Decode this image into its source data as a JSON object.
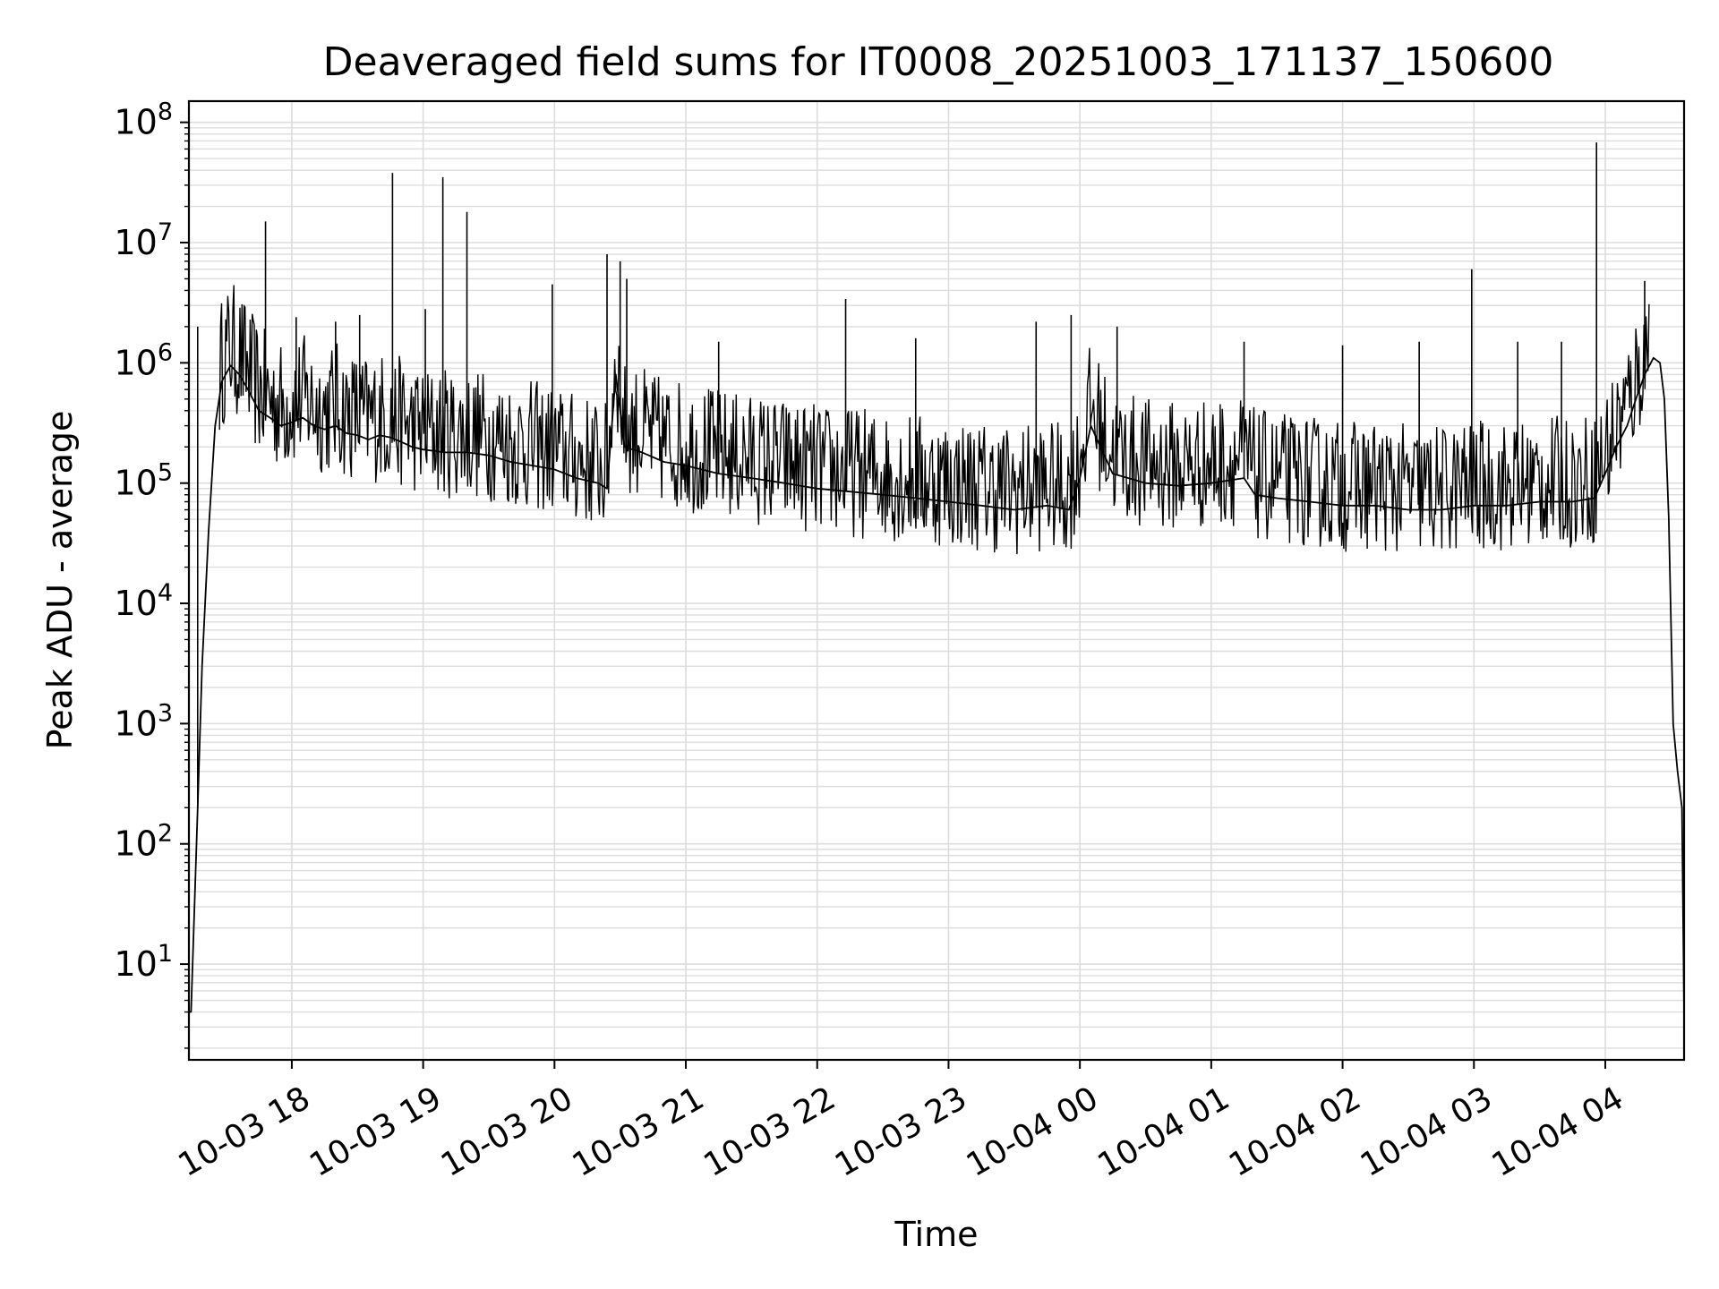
{
  "chart_data": {
    "type": "line",
    "title": "Deaveraged field sums for IT0008_20251003_171137_150600",
    "xlabel": "Time",
    "ylabel": "Peak ADU - average",
    "xscale": "time",
    "yscale": "log",
    "xlim": [
      "10-03 17:13",
      "10-04 04:36"
    ],
    "ylim": [
      1.6,
      150000000
    ],
    "grid": true,
    "grid_minor": true,
    "x_tick_labels": [
      "10-03 18",
      "10-03 19",
      "10-03 20",
      "10-03 21",
      "10-03 22",
      "10-03 23",
      "10-04 00",
      "10-04 01",
      "10-04 02",
      "10-04 03",
      "10-04 04"
    ],
    "y_ticks": [
      {
        "base": "10",
        "exp": "1",
        "value": 10
      },
      {
        "base": "10",
        "exp": "2",
        "value": 100
      },
      {
        "base": "10",
        "exp": "3",
        "value": 1000
      },
      {
        "base": "10",
        "exp": "4",
        "value": 10000
      },
      {
        "base": "10",
        "exp": "5",
        "value": 100000
      },
      {
        "base": "10",
        "exp": "6",
        "value": 1000000
      },
      {
        "base": "10",
        "exp": "7",
        "value": 10000000
      },
      {
        "base": "10",
        "exp": "8",
        "value": 100000000
      }
    ],
    "series": [
      {
        "color": "#000000",
        "x": [
          "10-03 17:13",
          "10-03 17:14",
          "10-03 17:15",
          "10-03 17:17",
          "10-03 17:19",
          "10-03 17:22",
          "10-03 17:25",
          "10-03 17:28",
          "10-03 17:32",
          "10-03 17:36",
          "10-03 17:40",
          "10-03 17:45",
          "10-03 17:50",
          "10-03 17:55",
          "10-03 18:00",
          "10-03 18:05",
          "10-03 18:10",
          "10-03 18:15",
          "10-03 18:20",
          "10-03 18:25",
          "10-03 18:30",
          "10-03 18:35",
          "10-03 18:40",
          "10-03 18:45",
          "10-03 18:50",
          "10-03 18:55",
          "10-03 19:00",
          "10-03 19:10",
          "10-03 19:20",
          "10-03 19:30",
          "10-03 19:40",
          "10-03 19:50",
          "10-03 20:00",
          "10-03 20:10",
          "10-03 20:20",
          "10-03 20:24",
          "10-03 20:28",
          "10-03 20:32",
          "10-03 20:40",
          "10-03 20:50",
          "10-03 21:00",
          "10-03 21:15",
          "10-03 21:30",
          "10-03 21:45",
          "10-03 22:00",
          "10-03 22:15",
          "10-03 22:30",
          "10-03 22:45",
          "10-03 23:00",
          "10-03 23:15",
          "10-03 23:30",
          "10-03 23:45",
          "10-03 23:55",
          "10-04 00:00",
          "10-04 00:05",
          "10-04 00:15",
          "10-04 00:30",
          "10-04 00:45",
          "10-04 01:00",
          "10-04 01:15",
          "10-04 01:20",
          "10-04 01:30",
          "10-04 01:45",
          "10-04 02:00",
          "10-04 02:15",
          "10-04 02:30",
          "10-04 02:45",
          "10-04 03:00",
          "10-04 03:15",
          "10-04 03:30",
          "10-04 03:45",
          "10-04 03:55",
          "10-04 04:00",
          "10-04 04:05",
          "10-04 04:10",
          "10-04 04:14",
          "10-04 04:18",
          "10-04 04:22",
          "10-04 04:25",
          "10-04 04:27",
          "10-04 04:29",
          "10-04 04:31",
          "10-04 04:33",
          "10-04 04:35",
          "10-04 04:36"
        ],
        "y": [
          4,
          4,
          15,
          200,
          3000,
          40000,
          300000,
          700000,
          950000,
          800000,
          600000,
          400000,
          350000,
          300000,
          320000,
          350000,
          300000,
          280000,
          300000,
          260000,
          250000,
          230000,
          250000,
          240000,
          220000,
          200000,
          190000,
          180000,
          180000,
          170000,
          150000,
          140000,
          130000,
          110000,
          100000,
          90000,
          800000,
          200000,
          180000,
          150000,
          140000,
          120000,
          110000,
          100000,
          90000,
          85000,
          80000,
          75000,
          70000,
          65000,
          60000,
          65000,
          60000,
          110000,
          300000,
          120000,
          100000,
          95000,
          100000,
          110000,
          80000,
          75000,
          70000,
          65000,
          65000,
          60000,
          60000,
          65000,
          65000,
          70000,
          70000,
          75000,
          120000,
          200000,
          300000,
          500000,
          800000,
          1100000,
          1000000,
          500000,
          50000,
          1000,
          400,
          200,
          4
        ]
      }
    ],
    "spikes": [
      {
        "x": "10-03 17:17",
        "y": 2000000
      },
      {
        "x": "10-03 17:48",
        "y": 15000000
      },
      {
        "x": "10-03 18:02",
        "y": 2400000
      },
      {
        "x": "10-03 18:20",
        "y": 2200000
      },
      {
        "x": "10-03 18:31",
        "y": 2500000
      },
      {
        "x": "10-03 18:46",
        "y": 38000000
      },
      {
        "x": "10-03 19:01",
        "y": 2800000
      },
      {
        "x": "10-03 19:09",
        "y": 35000000
      },
      {
        "x": "10-03 19:20",
        "y": 18000000
      },
      {
        "x": "10-03 19:59",
        "y": 4500000
      },
      {
        "x": "10-03 20:24",
        "y": 8000000
      },
      {
        "x": "10-03 20:30",
        "y": 7000000
      },
      {
        "x": "10-03 20:33",
        "y": 5000000
      },
      {
        "x": "10-03 21:15",
        "y": 1500000
      },
      {
        "x": "10-03 22:13",
        "y": 3400000
      },
      {
        "x": "10-03 22:45",
        "y": 1600000
      },
      {
        "x": "10-03 23:40",
        "y": 2200000
      },
      {
        "x": "10-03 23:56",
        "y": 2500000
      },
      {
        "x": "10-04 00:17",
        "y": 2000000
      },
      {
        "x": "10-04 01:15",
        "y": 1500000
      },
      {
        "x": "10-04 02:00",
        "y": 1400000
      },
      {
        "x": "10-04 02:35",
        "y": 1500000
      },
      {
        "x": "10-04 02:59",
        "y": 6000000
      },
      {
        "x": "10-04 03:20",
        "y": 1500000
      },
      {
        "x": "10-04 03:40",
        "y": 1500000
      },
      {
        "x": "10-04 03:56",
        "y": 68000000
      },
      {
        "x": "10-04 04:18",
        "y": 4800000
      }
    ]
  }
}
